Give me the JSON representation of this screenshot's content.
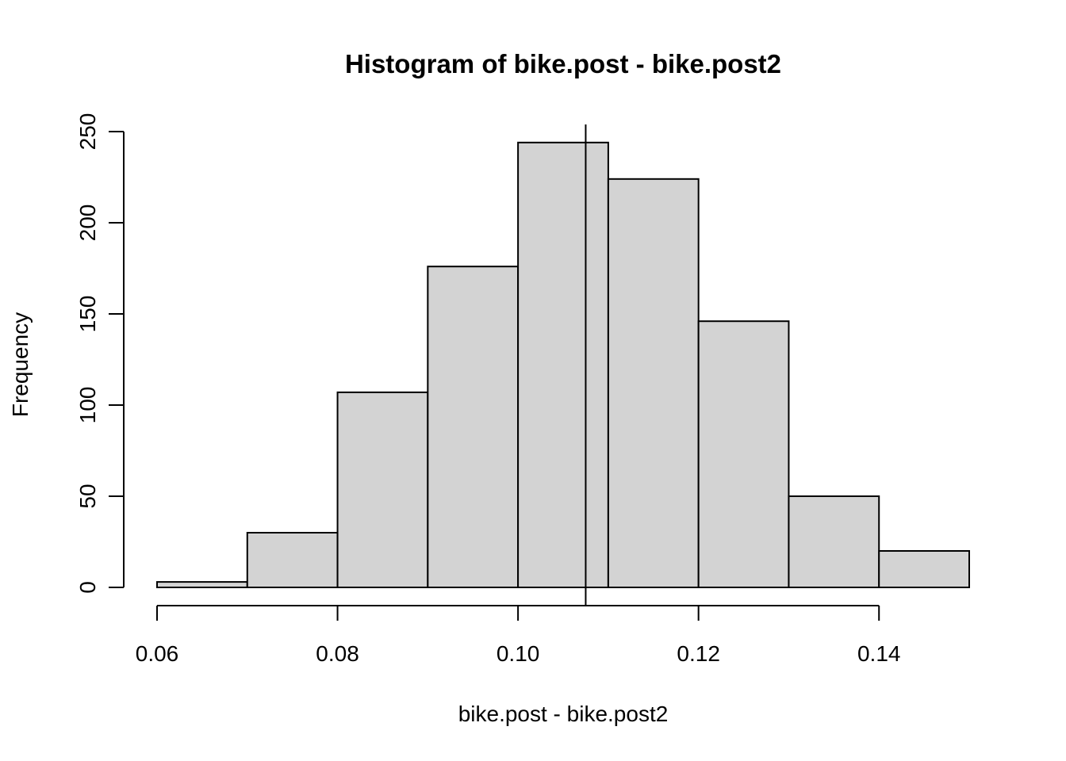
{
  "chart_data": {
    "type": "bar",
    "title": "Histogram of bike.post - bike.post2",
    "xlabel": "bike.post - bike.post2",
    "ylabel": "Frequency",
    "bins": [
      {
        "x0": 0.06,
        "x1": 0.07,
        "count": 3
      },
      {
        "x0": 0.07,
        "x1": 0.08,
        "count": 30
      },
      {
        "x0": 0.08,
        "x1": 0.09,
        "count": 107
      },
      {
        "x0": 0.09,
        "x1": 0.1,
        "count": 176
      },
      {
        "x0": 0.1,
        "x1": 0.11,
        "count": 244
      },
      {
        "x0": 0.11,
        "x1": 0.12,
        "count": 224
      },
      {
        "x0": 0.12,
        "x1": 0.13,
        "count": 146
      },
      {
        "x0": 0.13,
        "x1": 0.14,
        "count": 50
      },
      {
        "x0": 0.14,
        "x1": 0.15,
        "count": 20
      }
    ],
    "vline": 0.1075,
    "xlim": [
      0.06,
      0.15
    ],
    "ylim": [
      0,
      250
    ],
    "x_ticks": [
      0.06,
      0.08,
      0.1,
      0.12,
      0.14
    ],
    "x_tick_labels": [
      "0.06",
      "0.08",
      "0.10",
      "0.12",
      "0.14"
    ],
    "y_ticks": [
      0,
      50,
      100,
      150,
      200,
      250
    ],
    "y_tick_labels": [
      "0",
      "50",
      "100",
      "150",
      "200",
      "250"
    ],
    "grid": false,
    "bar_fill": "#d3d3d3",
    "bar_stroke": "#000000"
  }
}
